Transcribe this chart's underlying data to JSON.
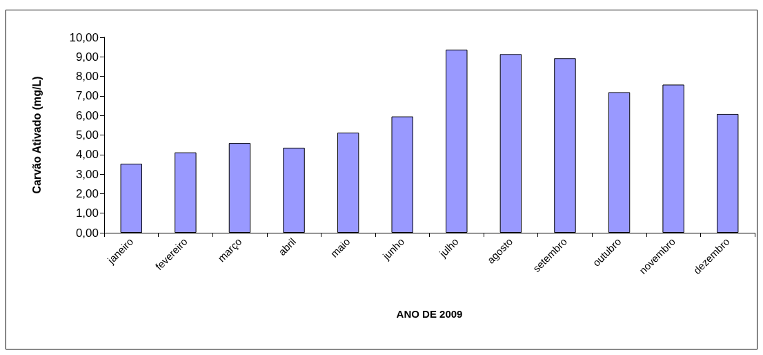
{
  "chart_data": {
    "type": "bar",
    "xlabel": "ANO DE 2009",
    "ylabel": "Carvão Ativado (mg/L)",
    "categories": [
      "janeiro",
      "fevereiro",
      "março",
      "abril",
      "maio",
      "junho",
      "julho",
      "agosto",
      "setembro",
      "outubro",
      "novembro",
      "dezembro"
    ],
    "values": [
      3.53,
      4.11,
      4.59,
      4.35,
      5.12,
      5.95,
      9.37,
      9.14,
      8.93,
      7.19,
      7.58,
      6.08
    ],
    "color": "#9999ff",
    "ylim": [
      0,
      10
    ],
    "yticks": [
      {
        "value": 0,
        "label": "0,00"
      },
      {
        "value": 1,
        "label": "1,00"
      },
      {
        "value": 2,
        "label": "2,00"
      },
      {
        "value": 3,
        "label": "3,00"
      },
      {
        "value": 4,
        "label": "4,00"
      },
      {
        "value": 5,
        "label": "5,00"
      },
      {
        "value": 6,
        "label": "6,00"
      },
      {
        "value": 7,
        "label": "7,00"
      },
      {
        "value": 8,
        "label": "8,00"
      },
      {
        "value": 9,
        "label": "9,00"
      },
      {
        "value": 10,
        "label": "10,00"
      }
    ],
    "grid": false
  }
}
